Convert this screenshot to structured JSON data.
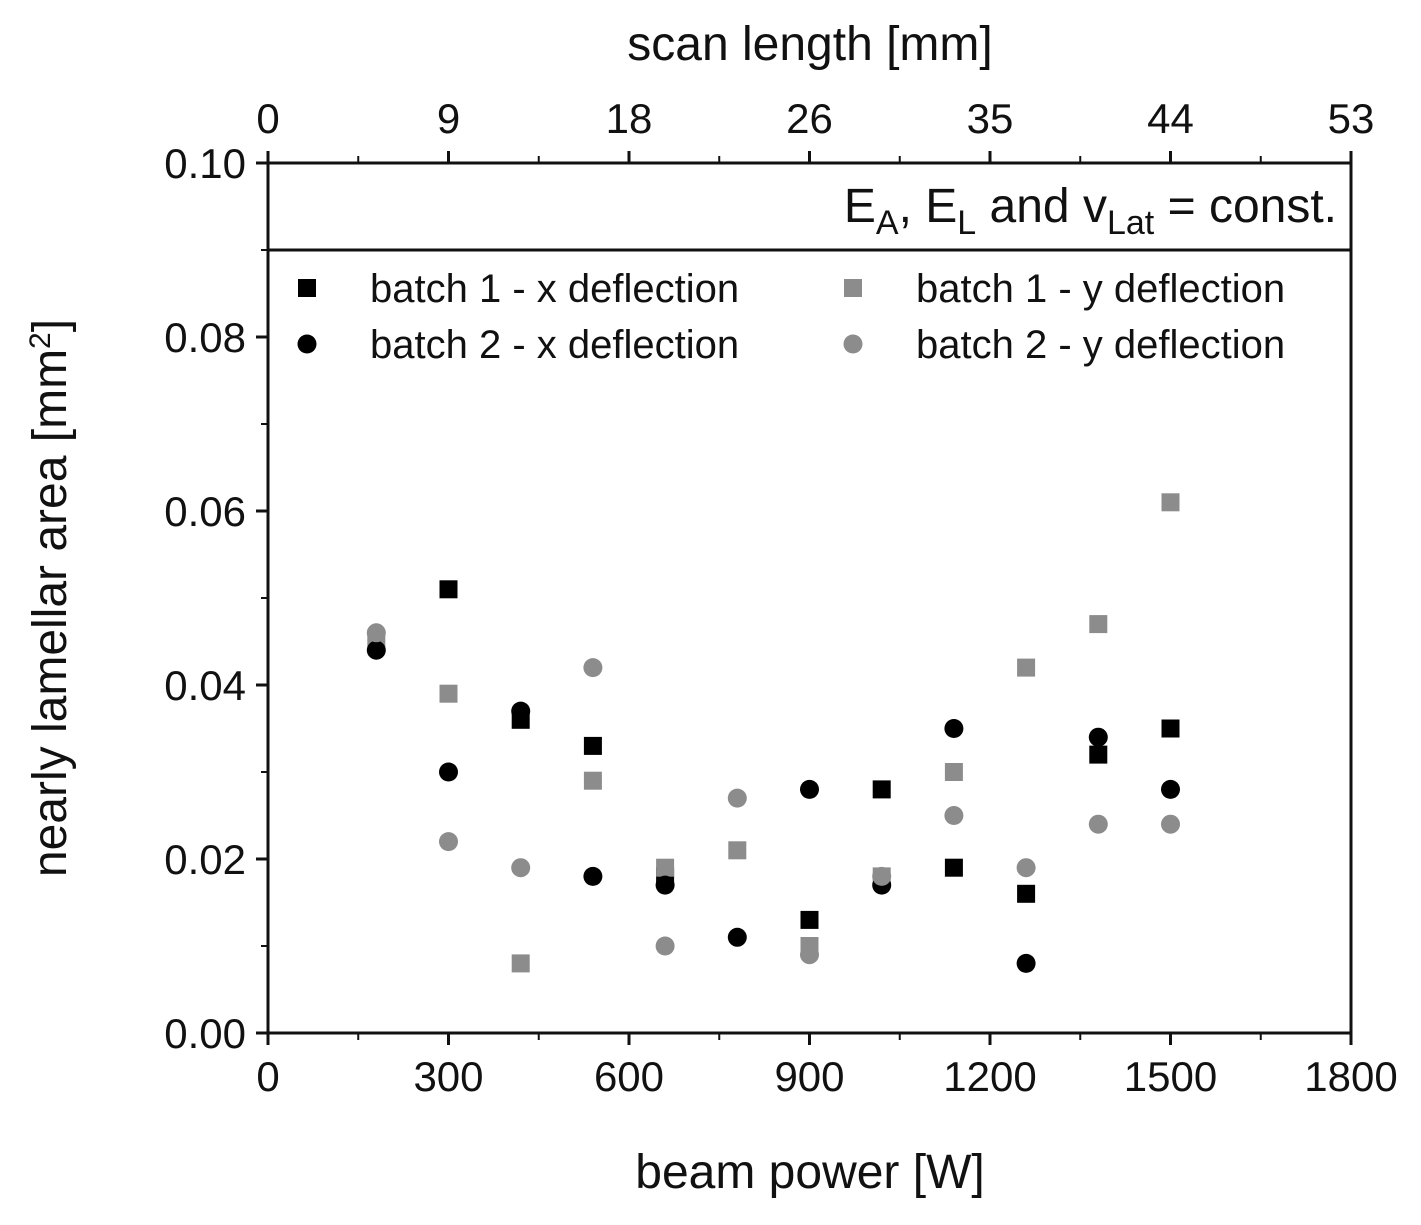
{
  "chart_data": {
    "type": "scatter",
    "xlabel": "beam power [W]",
    "ylabel": "nearly lamellar area [mm²]",
    "ylabel_main": "nearly lamellar area [mm",
    "ylabel_sup": "2",
    "ylabel_end": "]",
    "top_xlabel": "scan length [mm]",
    "xlim": [
      0,
      1800
    ],
    "ylim": [
      0,
      0.1
    ],
    "x_ticks": [
      "0",
      "300",
      "600",
      "900",
      "1200",
      "1500",
      "1800"
    ],
    "y_ticks": [
      "0.00",
      "0.02",
      "0.04",
      "0.06",
      "0.08",
      "0.10"
    ],
    "top_ticks": [
      "0",
      "9",
      "18",
      "26",
      "35",
      "44",
      "53"
    ],
    "annotation": {
      "e": "E",
      "a_sub": "A",
      "comma": ", ",
      "l_sub": "L",
      "and_v": " and v",
      "lat_sub": "Lat",
      "tail": " = const."
    },
    "grid": false,
    "legend_position": "top",
    "series": [
      {
        "name": "batch 1 - x deflection",
        "marker": "square",
        "color": "#000000",
        "points": [
          [
            300,
            0.051
          ],
          [
            420,
            0.036
          ],
          [
            540,
            0.033
          ],
          [
            660,
            0.018
          ],
          [
            900,
            0.013
          ],
          [
            1020,
            0.028
          ],
          [
            1140,
            0.019
          ],
          [
            1260,
            0.016
          ],
          [
            1380,
            0.032
          ],
          [
            1500,
            0.035
          ]
        ]
      },
      {
        "name": "batch 1 - y deflection",
        "marker": "square",
        "color": "#8c8c8c",
        "points": [
          [
            180,
            0.045
          ],
          [
            300,
            0.039
          ],
          [
            420,
            0.008
          ],
          [
            540,
            0.029
          ],
          [
            660,
            0.019
          ],
          [
            780,
            0.021
          ],
          [
            900,
            0.01
          ],
          [
            1020,
            0.018
          ],
          [
            1140,
            0.03
          ],
          [
            1260,
            0.042
          ],
          [
            1380,
            0.047
          ],
          [
            1500,
            0.061
          ]
        ]
      },
      {
        "name": "batch 2 - x deflection",
        "marker": "circle",
        "color": "#000000",
        "points": [
          [
            180,
            0.044
          ],
          [
            300,
            0.03
          ],
          [
            420,
            0.037
          ],
          [
            540,
            0.018
          ],
          [
            660,
            0.017
          ],
          [
            780,
            0.011
          ],
          [
            900,
            0.028
          ],
          [
            1020,
            0.017
          ],
          [
            1140,
            0.035
          ],
          [
            1260,
            0.008
          ],
          [
            1380,
            0.034
          ],
          [
            1500,
            0.028
          ]
        ]
      },
      {
        "name": "batch 2 - y deflection",
        "marker": "circle",
        "color": "#8c8c8c",
        "points": [
          [
            180,
            0.046
          ],
          [
            300,
            0.022
          ],
          [
            420,
            0.019
          ],
          [
            540,
            0.042
          ],
          [
            660,
            0.01
          ],
          [
            780,
            0.027
          ],
          [
            900,
            0.009
          ],
          [
            1020,
            0.018
          ],
          [
            1140,
            0.025
          ],
          [
            1260,
            0.019
          ],
          [
            1380,
            0.024
          ],
          [
            1500,
            0.024
          ]
        ]
      }
    ]
  }
}
